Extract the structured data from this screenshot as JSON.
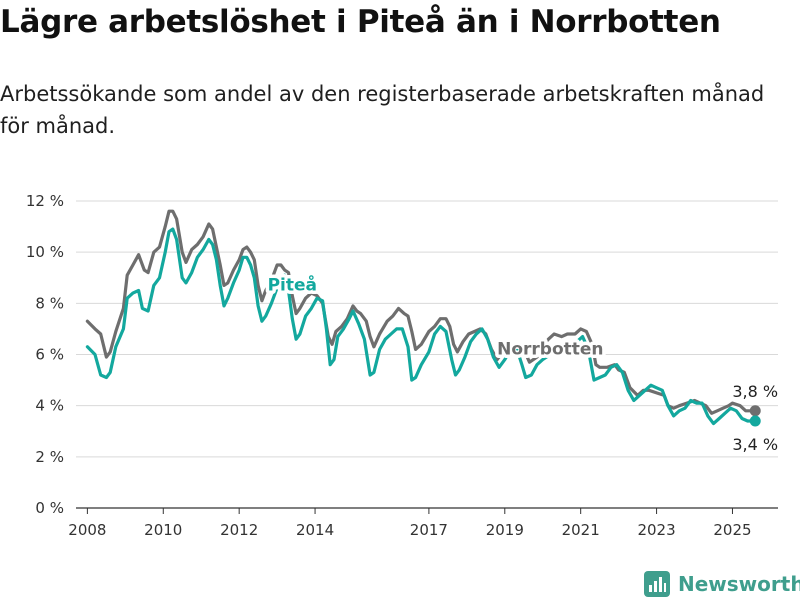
{
  "title": "Lägre arbetslöshet i Piteå än i Norrbotten",
  "subtitle": "Arbetssökande som andel av den registerbaserade arbetskraften månad för månad.",
  "brand": {
    "name": "Newsworthy",
    "icon": "newsworthy-logo-icon"
  },
  "colors": {
    "pitea": "#13a89e",
    "norrbotten": "#6e6e6e",
    "grid": "#d9d9d9",
    "axis": "#333333",
    "brand": "#3f9e8d"
  },
  "chart_data": {
    "type": "line",
    "title": "Lägre arbetslöshet i Piteå än i Norrbotten",
    "xlabel": "",
    "ylabel": "",
    "x_unit": "year",
    "xlim": [
      2007.7,
      2026.2
    ],
    "ylim": [
      0,
      12
    ],
    "y_ticks": [
      {
        "value": 0,
        "label": "0 %"
      },
      {
        "value": 2,
        "label": "2 %"
      },
      {
        "value": 4,
        "label": "4 %"
      },
      {
        "value": 6,
        "label": "6 %"
      },
      {
        "value": 8,
        "label": "8 %"
      },
      {
        "value": 10,
        "label": "10 %"
      },
      {
        "value": 12,
        "label": "12 %"
      }
    ],
    "x_ticks": [
      {
        "value": 2008,
        "label": "2008"
      },
      {
        "value": 2010,
        "label": "2010"
      },
      {
        "value": 2012,
        "label": "2012"
      },
      {
        "value": 2014,
        "label": "2014"
      },
      {
        "value": 2017,
        "label": "2017"
      },
      {
        "value": 2019,
        "label": "2019"
      },
      {
        "value": 2021,
        "label": "2021"
      },
      {
        "value": 2023,
        "label": "2023"
      },
      {
        "value": 2025,
        "label": "2025"
      }
    ],
    "grid": true,
    "series": [
      {
        "name": "Norrbotten",
        "key": "norrbotten",
        "end_label": "3,8 %",
        "points": [
          [
            2008.0,
            7.3
          ],
          [
            2008.2,
            7.0
          ],
          [
            2008.35,
            6.8
          ],
          [
            2008.5,
            5.9
          ],
          [
            2008.6,
            6.1
          ],
          [
            2008.75,
            6.9
          ],
          [
            2008.95,
            7.8
          ],
          [
            2009.05,
            9.1
          ],
          [
            2009.2,
            9.5
          ],
          [
            2009.35,
            9.9
          ],
          [
            2009.5,
            9.3
          ],
          [
            2009.6,
            9.2
          ],
          [
            2009.75,
            10.0
          ],
          [
            2009.9,
            10.2
          ],
          [
            2010.05,
            11.0
          ],
          [
            2010.15,
            11.6
          ],
          [
            2010.25,
            11.6
          ],
          [
            2010.35,
            11.3
          ],
          [
            2010.5,
            10.0
          ],
          [
            2010.6,
            9.6
          ],
          [
            2010.75,
            10.1
          ],
          [
            2010.9,
            10.3
          ],
          [
            2011.05,
            10.6
          ],
          [
            2011.2,
            11.1
          ],
          [
            2011.3,
            10.9
          ],
          [
            2011.4,
            10.2
          ],
          [
            2011.5,
            9.5
          ],
          [
            2011.6,
            8.7
          ],
          [
            2011.7,
            8.8
          ],
          [
            2011.85,
            9.3
          ],
          [
            2012.0,
            9.7
          ],
          [
            2012.1,
            10.1
          ],
          [
            2012.2,
            10.2
          ],
          [
            2012.3,
            10.0
          ],
          [
            2012.4,
            9.7
          ],
          [
            2012.5,
            8.7
          ],
          [
            2012.6,
            8.1
          ],
          [
            2012.7,
            8.5
          ],
          [
            2012.85,
            8.9
          ],
          [
            2013.0,
            9.5
          ],
          [
            2013.1,
            9.5
          ],
          [
            2013.2,
            9.3
          ],
          [
            2013.3,
            9.2
          ],
          [
            2013.4,
            8.3
          ],
          [
            2013.5,
            7.6
          ],
          [
            2013.6,
            7.8
          ],
          [
            2013.75,
            8.2
          ],
          [
            2013.9,
            8.4
          ],
          [
            2014.05,
            8.3
          ],
          [
            2014.2,
            8.0
          ],
          [
            2014.35,
            6.7
          ],
          [
            2014.45,
            6.4
          ],
          [
            2014.55,
            6.9
          ],
          [
            2014.7,
            7.1
          ],
          [
            2014.85,
            7.4
          ],
          [
            2015.0,
            7.9
          ],
          [
            2015.1,
            7.7
          ],
          [
            2015.2,
            7.6
          ],
          [
            2015.35,
            7.3
          ],
          [
            2015.45,
            6.7
          ],
          [
            2015.55,
            6.3
          ],
          [
            2015.7,
            6.8
          ],
          [
            2015.9,
            7.3
          ],
          [
            2016.05,
            7.5
          ],
          [
            2016.2,
            7.8
          ],
          [
            2016.35,
            7.6
          ],
          [
            2016.45,
            7.5
          ],
          [
            2016.55,
            6.9
          ],
          [
            2016.65,
            6.2
          ],
          [
            2016.8,
            6.4
          ],
          [
            2017.0,
            6.9
          ],
          [
            2017.15,
            7.1
          ],
          [
            2017.3,
            7.4
          ],
          [
            2017.45,
            7.4
          ],
          [
            2017.55,
            7.1
          ],
          [
            2017.65,
            6.4
          ],
          [
            2017.75,
            6.1
          ],
          [
            2017.9,
            6.5
          ],
          [
            2018.05,
            6.8
          ],
          [
            2018.2,
            6.9
          ],
          [
            2018.35,
            7.0
          ],
          [
            2018.5,
            6.8
          ],
          [
            2018.65,
            6.2
          ],
          [
            2018.8,
            5.8
          ],
          [
            2019.0,
            6.2
          ],
          [
            2019.2,
            6.4
          ],
          [
            2019.35,
            6.4
          ],
          [
            2019.5,
            6.2
          ],
          [
            2019.65,
            5.7
          ],
          [
            2019.85,
            5.9
          ],
          [
            2020.0,
            6.3
          ],
          [
            2020.15,
            6.6
          ],
          [
            2020.3,
            6.8
          ],
          [
            2020.5,
            6.7
          ],
          [
            2020.65,
            6.8
          ],
          [
            2020.85,
            6.8
          ],
          [
            2021.0,
            7.0
          ],
          [
            2021.15,
            6.9
          ],
          [
            2021.3,
            6.4
          ],
          [
            2021.4,
            5.6
          ],
          [
            2021.5,
            5.5
          ],
          [
            2021.7,
            5.5
          ],
          [
            2021.9,
            5.6
          ],
          [
            2022.0,
            5.4
          ],
          [
            2022.15,
            5.3
          ],
          [
            2022.3,
            4.7
          ],
          [
            2022.5,
            4.4
          ],
          [
            2022.65,
            4.6
          ],
          [
            2022.8,
            4.6
          ],
          [
            2023.0,
            4.5
          ],
          [
            2023.2,
            4.4
          ],
          [
            2023.3,
            4.0
          ],
          [
            2023.45,
            3.9
          ],
          [
            2023.6,
            4.0
          ],
          [
            2023.8,
            4.1
          ],
          [
            2024.0,
            4.2
          ],
          [
            2024.15,
            4.1
          ],
          [
            2024.3,
            4.0
          ],
          [
            2024.45,
            3.7
          ],
          [
            2024.6,
            3.8
          ],
          [
            2024.75,
            3.9
          ],
          [
            2024.9,
            4.0
          ],
          [
            2025.0,
            4.1
          ],
          [
            2025.2,
            4.0
          ],
          [
            2025.35,
            3.8
          ],
          [
            2025.45,
            3.8
          ],
          [
            2025.6,
            3.8
          ]
        ]
      },
      {
        "name": "Piteå",
        "key": "pitea",
        "end_label": "3,4 %",
        "points": [
          [
            2008.0,
            6.3
          ],
          [
            2008.2,
            6.0
          ],
          [
            2008.35,
            5.2
          ],
          [
            2008.5,
            5.1
          ],
          [
            2008.6,
            5.3
          ],
          [
            2008.75,
            6.3
          ],
          [
            2008.95,
            7.0
          ],
          [
            2009.05,
            8.2
          ],
          [
            2009.2,
            8.4
          ],
          [
            2009.35,
            8.5
          ],
          [
            2009.45,
            7.8
          ],
          [
            2009.6,
            7.7
          ],
          [
            2009.75,
            8.7
          ],
          [
            2009.9,
            9.0
          ],
          [
            2010.05,
            10.0
          ],
          [
            2010.15,
            10.8
          ],
          [
            2010.25,
            10.9
          ],
          [
            2010.35,
            10.5
          ],
          [
            2010.5,
            9.0
          ],
          [
            2010.6,
            8.8
          ],
          [
            2010.75,
            9.2
          ],
          [
            2010.9,
            9.8
          ],
          [
            2011.05,
            10.1
          ],
          [
            2011.2,
            10.5
          ],
          [
            2011.3,
            10.3
          ],
          [
            2011.4,
            9.7
          ],
          [
            2011.5,
            8.7
          ],
          [
            2011.6,
            7.9
          ],
          [
            2011.7,
            8.2
          ],
          [
            2011.85,
            8.8
          ],
          [
            2012.0,
            9.3
          ],
          [
            2012.1,
            9.8
          ],
          [
            2012.2,
            9.8
          ],
          [
            2012.3,
            9.5
          ],
          [
            2012.4,
            9.0
          ],
          [
            2012.5,
            7.9
          ],
          [
            2012.6,
            7.3
          ],
          [
            2012.7,
            7.5
          ],
          [
            2012.85,
            8.0
          ],
          [
            2013.0,
            8.6
          ],
          [
            2013.1,
            9.0
          ],
          [
            2013.2,
            9.1
          ],
          [
            2013.3,
            8.5
          ],
          [
            2013.4,
            7.4
          ],
          [
            2013.5,
            6.6
          ],
          [
            2013.6,
            6.8
          ],
          [
            2013.75,
            7.5
          ],
          [
            2013.9,
            7.8
          ],
          [
            2014.05,
            8.2
          ],
          [
            2014.2,
            8.1
          ],
          [
            2014.3,
            7.0
          ],
          [
            2014.4,
            5.6
          ],
          [
            2014.5,
            5.8
          ],
          [
            2014.6,
            6.7
          ],
          [
            2014.75,
            7.0
          ],
          [
            2014.9,
            7.4
          ],
          [
            2015.0,
            7.7
          ],
          [
            2015.15,
            7.2
          ],
          [
            2015.3,
            6.6
          ],
          [
            2015.45,
            5.2
          ],
          [
            2015.55,
            5.3
          ],
          [
            2015.7,
            6.2
          ],
          [
            2015.85,
            6.6
          ],
          [
            2016.0,
            6.8
          ],
          [
            2016.15,
            7.0
          ],
          [
            2016.3,
            7.0
          ],
          [
            2016.45,
            6.3
          ],
          [
            2016.55,
            5.0
          ],
          [
            2016.65,
            5.1
          ],
          [
            2016.8,
            5.6
          ],
          [
            2017.0,
            6.1
          ],
          [
            2017.15,
            6.8
          ],
          [
            2017.3,
            7.1
          ],
          [
            2017.45,
            6.9
          ],
          [
            2017.6,
            5.8
          ],
          [
            2017.7,
            5.2
          ],
          [
            2017.8,
            5.4
          ],
          [
            2017.95,
            5.9
          ],
          [
            2018.1,
            6.5
          ],
          [
            2018.25,
            6.8
          ],
          [
            2018.4,
            7.0
          ],
          [
            2018.55,
            6.6
          ],
          [
            2018.7,
            5.9
          ],
          [
            2018.85,
            5.5
          ],
          [
            2019.0,
            5.8
          ],
          [
            2019.15,
            6.2
          ],
          [
            2019.3,
            6.3
          ],
          [
            2019.45,
            5.6
          ],
          [
            2019.55,
            5.1
          ],
          [
            2019.7,
            5.2
          ],
          [
            2019.85,
            5.6
          ],
          [
            2020.0,
            5.8
          ],
          [
            2020.2,
            6.0
          ],
          [
            2020.35,
            6.1
          ],
          [
            2020.5,
            6.0
          ],
          [
            2020.65,
            6.2
          ],
          [
            2020.8,
            6.3
          ],
          [
            2020.9,
            6.5
          ],
          [
            2021.05,
            6.7
          ],
          [
            2021.2,
            6.2
          ],
          [
            2021.35,
            5.0
          ],
          [
            2021.5,
            5.1
          ],
          [
            2021.65,
            5.2
          ],
          [
            2021.8,
            5.5
          ],
          [
            2021.95,
            5.6
          ],
          [
            2022.1,
            5.3
          ],
          [
            2022.25,
            4.6
          ],
          [
            2022.4,
            4.2
          ],
          [
            2022.55,
            4.4
          ],
          [
            2022.7,
            4.6
          ],
          [
            2022.85,
            4.8
          ],
          [
            2023.0,
            4.7
          ],
          [
            2023.15,
            4.6
          ],
          [
            2023.3,
            4.0
          ],
          [
            2023.45,
            3.6
          ],
          [
            2023.6,
            3.8
          ],
          [
            2023.75,
            3.9
          ],
          [
            2023.9,
            4.2
          ],
          [
            2024.05,
            4.1
          ],
          [
            2024.2,
            4.1
          ],
          [
            2024.35,
            3.6
          ],
          [
            2024.5,
            3.3
          ],
          [
            2024.65,
            3.5
          ],
          [
            2024.8,
            3.7
          ],
          [
            2024.95,
            3.9
          ],
          [
            2025.1,
            3.8
          ],
          [
            2025.25,
            3.5
          ],
          [
            2025.4,
            3.4
          ],
          [
            2025.6,
            3.4
          ]
        ]
      }
    ],
    "inline_labels": [
      {
        "series": "pitea",
        "text": "Piteå",
        "x": 2013.4,
        "y": 8.5
      },
      {
        "series": "norrbotten",
        "text": "Norrbotten",
        "x": 2020.2,
        "y": 6.0
      }
    ]
  }
}
